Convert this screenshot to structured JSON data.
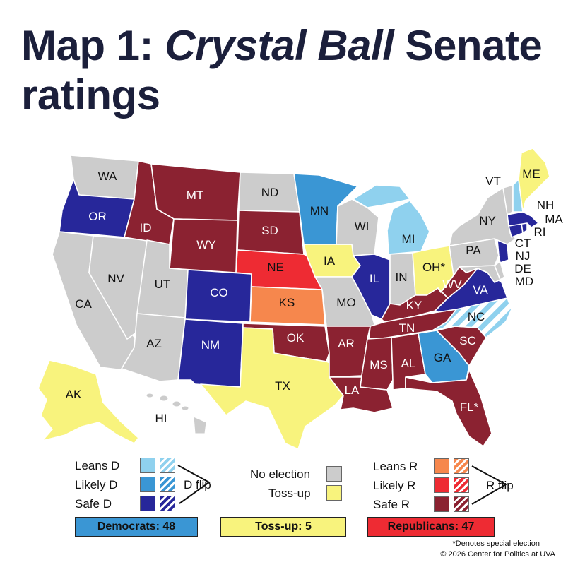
{
  "title": {
    "prefix": "Map 1: ",
    "emph": "Crystal Ball",
    "suffix": " Senate ratings"
  },
  "colors": {
    "no_election": "#cccccc",
    "leans_d": "#8fd1ee",
    "likely_d": "#3a96d4",
    "safe_d": "#27279a",
    "tossup": "#f8f37d",
    "leans_r": "#f6874d",
    "likely_r": "#ee2b33",
    "safe_r": "#8b2231"
  },
  "states": {
    "WA": "WA",
    "OR": "OR",
    "CA": "CA",
    "NV": "NV",
    "ID": "ID",
    "MT": "MT",
    "WY": "WY",
    "UT": "UT",
    "AZ": "AZ",
    "CO": "CO",
    "NM": "NM",
    "ND": "ND",
    "SD": "SD",
    "NE": "NE",
    "KS": "KS",
    "OK": "OK",
    "TX": "TX",
    "MN": "MN",
    "IA": "IA",
    "MO": "MO",
    "AR": "AR",
    "LA": "LA",
    "WI": "WI",
    "IL": "IL",
    "MI": "MI",
    "IN": "IN",
    "OH": "OH*",
    "KY": "KY",
    "TN": "TN",
    "MS": "MS",
    "AL": "AL",
    "GA": "GA",
    "FL": "FL*",
    "SC": "SC",
    "NC": "NC",
    "VA": "VA",
    "WV": "WV",
    "PA": "PA",
    "NY": "NY",
    "VT": "VT",
    "NH": "NH",
    "ME": "ME",
    "MA": "MA",
    "RI": "RI",
    "CT": "CT",
    "NJ": "NJ",
    "DE": "DE",
    "MD": "MD",
    "AK": "AK",
    "HI": "HI"
  },
  "legend": {
    "leans_d": "Leans D",
    "likely_d": "Likely D",
    "safe_d": "Safe D",
    "d_flip": "D flip",
    "no_election": "No election",
    "tossup": "Toss-up",
    "leans_r": "Leans R",
    "likely_r": "Likely R",
    "safe_r": "Safe R",
    "r_flip": "R flip"
  },
  "totals": {
    "democrats": "Democrats: 48",
    "tossup": "Toss-up: 5",
    "republicans": "Republicans: 47"
  },
  "footnote": {
    "special": "*Denotes special election",
    "copyright": "© 2026 Center for Politics at UVA"
  }
}
